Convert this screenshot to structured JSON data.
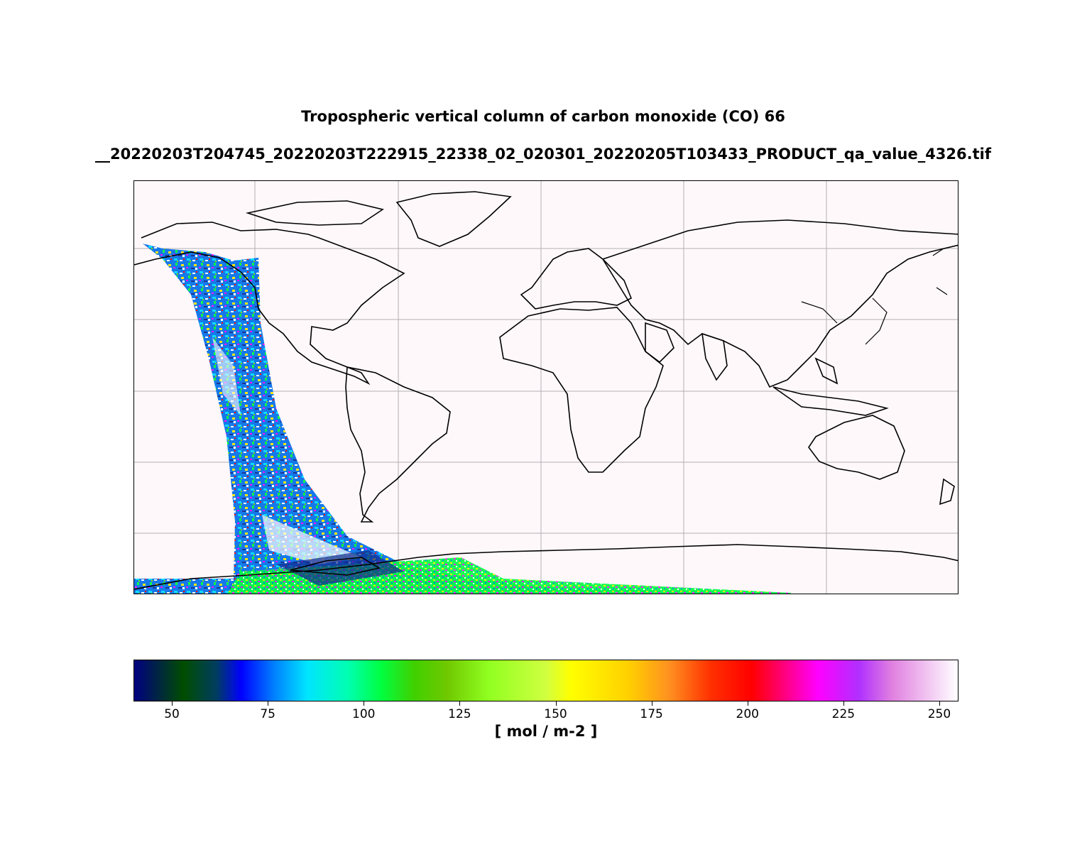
{
  "title": {
    "line1": "Tropospheric vertical column of carbon monoxide (CO) 66",
    "line2": "__20220203T204745_20220203T222915_22338_02_020301_20220205T103433_PRODUCT_qa_value_4326.tif"
  },
  "map": {
    "projection": "plate-carree",
    "background_color": "#fff8fb",
    "coastline_color": "#000000",
    "gridline_color": "#b0b0b0",
    "grid": true,
    "swath_colors": [
      "#0a72e8",
      "#00d8ff",
      "#00ff40",
      "#7be000",
      "#ffe600",
      "#ff0000",
      "#ff00ff",
      "#ffffff",
      "#0f2a8c"
    ]
  },
  "colorbar": {
    "min": 40,
    "max": 255,
    "ticks": [
      "50",
      "75",
      "100",
      "125",
      "150",
      "175",
      "200",
      "225",
      "250"
    ],
    "unit_label": "[ mol / m-2 ]",
    "colormap": "gist_ncar"
  }
}
